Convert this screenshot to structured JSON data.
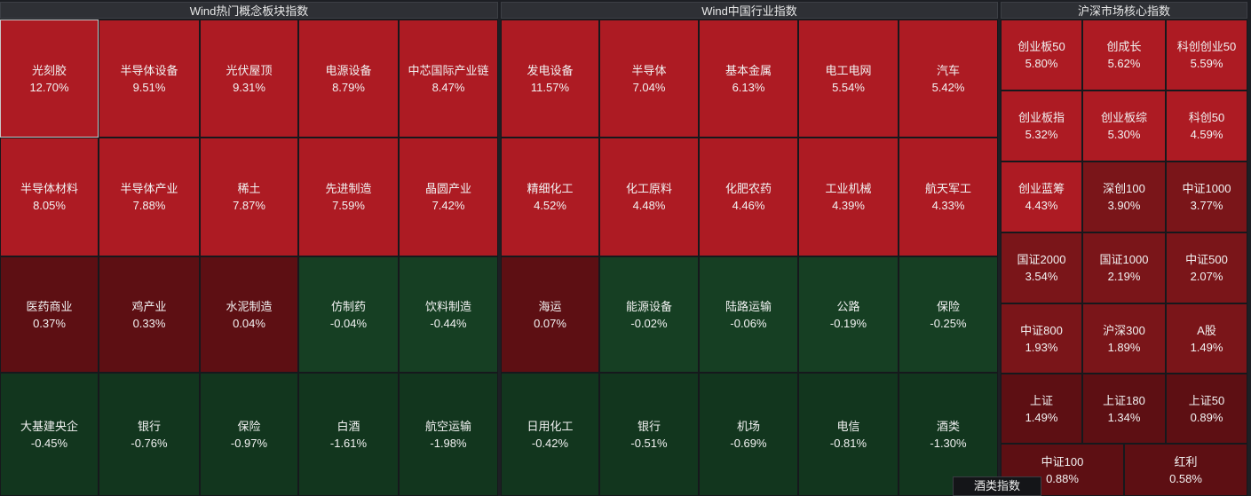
{
  "panels": [
    {
      "title": "Wind热门概念板块指数",
      "tiles": [
        {
          "name": "光刻胶",
          "pct": "12.70%",
          "tone": "r1"
        },
        {
          "name": "半导体设备",
          "pct": "9.51%",
          "tone": "r1"
        },
        {
          "name": "光伏屋顶",
          "pct": "9.31%",
          "tone": "r1"
        },
        {
          "name": "电源设备",
          "pct": "8.79%",
          "tone": "r1"
        },
        {
          "name": "中芯国际产业链",
          "pct": "8.47%",
          "tone": "r1"
        },
        {
          "name": "半导体材料",
          "pct": "8.05%",
          "tone": "r1"
        },
        {
          "name": "半导体产业",
          "pct": "7.88%",
          "tone": "r1"
        },
        {
          "name": "稀土",
          "pct": "7.87%",
          "tone": "r1"
        },
        {
          "name": "先进制造",
          "pct": "7.59%",
          "tone": "r1"
        },
        {
          "name": "晶圆产业",
          "pct": "7.42%",
          "tone": "r1"
        },
        {
          "name": "医药商业",
          "pct": "0.37%",
          "tone": "r4"
        },
        {
          "name": "鸡产业",
          "pct": "0.33%",
          "tone": "r4"
        },
        {
          "name": "水泥制造",
          "pct": "0.04%",
          "tone": "r4"
        },
        {
          "name": "仿制药",
          "pct": "-0.04%",
          "tone": "g1"
        },
        {
          "name": "饮料制造",
          "pct": "-0.44%",
          "tone": "g1"
        },
        {
          "name": "大基建央企",
          "pct": "-0.45%",
          "tone": "g2"
        },
        {
          "name": "银行",
          "pct": "-0.76%",
          "tone": "g2"
        },
        {
          "name": "保险",
          "pct": "-0.97%",
          "tone": "g2"
        },
        {
          "name": "白酒",
          "pct": "-1.61%",
          "tone": "g2"
        },
        {
          "name": "航空运输",
          "pct": "-1.98%",
          "tone": "g2"
        }
      ]
    },
    {
      "title": "Wind中国行业指数",
      "tiles": [
        {
          "name": "发电设备",
          "pct": "11.57%",
          "tone": "r1"
        },
        {
          "name": "半导体",
          "pct": "7.04%",
          "tone": "r1"
        },
        {
          "name": "基本金属",
          "pct": "6.13%",
          "tone": "r1"
        },
        {
          "name": "电工电网",
          "pct": "5.54%",
          "tone": "r1"
        },
        {
          "name": "汽车",
          "pct": "5.42%",
          "tone": "r1"
        },
        {
          "name": "精细化工",
          "pct": "4.52%",
          "tone": "r1"
        },
        {
          "name": "化工原料",
          "pct": "4.48%",
          "tone": "r1"
        },
        {
          "name": "化肥农药",
          "pct": "4.46%",
          "tone": "r1"
        },
        {
          "name": "工业机械",
          "pct": "4.39%",
          "tone": "r1"
        },
        {
          "name": "航天军工",
          "pct": "4.33%",
          "tone": "r1"
        },
        {
          "name": "海运",
          "pct": "0.07%",
          "tone": "r4"
        },
        {
          "name": "能源设备",
          "pct": "-0.02%",
          "tone": "g1"
        },
        {
          "name": "陆路运输",
          "pct": "-0.06%",
          "tone": "g1"
        },
        {
          "name": "公路",
          "pct": "-0.19%",
          "tone": "g1"
        },
        {
          "name": "保险",
          "pct": "-0.25%",
          "tone": "g1"
        },
        {
          "name": "日用化工",
          "pct": "-0.42%",
          "tone": "g2"
        },
        {
          "name": "银行",
          "pct": "-0.51%",
          "tone": "g2"
        },
        {
          "name": "机场",
          "pct": "-0.69%",
          "tone": "g2"
        },
        {
          "name": "电信",
          "pct": "-0.81%",
          "tone": "g2"
        },
        {
          "name": "酒类",
          "pct": "-1.30%",
          "tone": "g2"
        }
      ]
    },
    {
      "title": "沪深市场核心指数",
      "tiles": [
        {
          "name": "创业板50",
          "pct": "5.80%",
          "tone": "r1"
        },
        {
          "name": "创成长",
          "pct": "5.62%",
          "tone": "r1"
        },
        {
          "name": "科创创业50",
          "pct": "5.59%",
          "tone": "r1"
        },
        {
          "name": "创业板指",
          "pct": "5.32%",
          "tone": "r1"
        },
        {
          "name": "创业板综",
          "pct": "5.30%",
          "tone": "r1"
        },
        {
          "name": "科创50",
          "pct": "4.59%",
          "tone": "r1"
        },
        {
          "name": "创业蓝筹",
          "pct": "4.43%",
          "tone": "r1"
        },
        {
          "name": "深创100",
          "pct": "3.90%",
          "tone": "r3"
        },
        {
          "name": "中证1000",
          "pct": "3.77%",
          "tone": "r3"
        },
        {
          "name": "国证2000",
          "pct": "3.54%",
          "tone": "r3"
        },
        {
          "name": "国证1000",
          "pct": "2.19%",
          "tone": "r3"
        },
        {
          "name": "中证500",
          "pct": "2.07%",
          "tone": "r3"
        },
        {
          "name": "中证800",
          "pct": "1.93%",
          "tone": "r3"
        },
        {
          "name": "沪深300",
          "pct": "1.89%",
          "tone": "r3"
        },
        {
          "name": "A股",
          "pct": "1.49%",
          "tone": "r3"
        },
        {
          "name": "上证",
          "pct": "1.49%",
          "tone": "r4"
        },
        {
          "name": "上证180",
          "pct": "1.34%",
          "tone": "r4"
        },
        {
          "name": "上证50",
          "pct": "0.89%",
          "tone": "r4"
        },
        {
          "name": "中证100",
          "pct": "0.88%",
          "tone": "r4"
        },
        {
          "name": "红利",
          "pct": "0.58%",
          "tone": "r4"
        }
      ]
    }
  ],
  "tooltip": "酒类指数"
}
